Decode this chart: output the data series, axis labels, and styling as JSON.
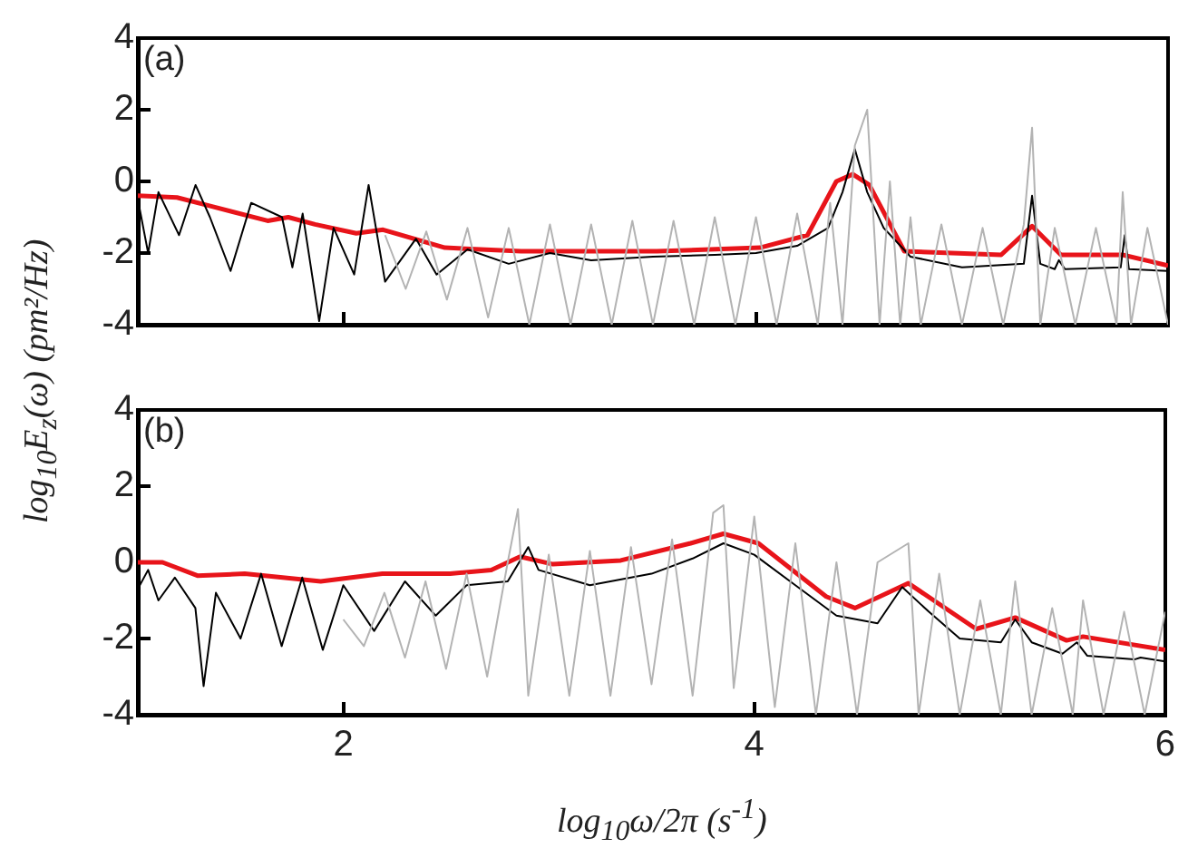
{
  "chart_data": [
    {
      "type": "line",
      "ylabel": "log$_{10}$E$_{z}$(ω) (pm²/Hz)",
      "annotations": [
        "(a)"
      ],
      "xlim": [
        1,
        6
      ],
      "xticks": [
        2,
        4,
        6
      ],
      "ylim": [
        -4,
        4
      ],
      "yticks": [
        -4,
        -2,
        0,
        2,
        4
      ],
      "tick_labels": "y",
      "grid": false,
      "legend": false,
      "marker": "none",
      "series": [
        {
          "color": "#b3b3b3",
          "x": [
            2.2,
            2.3,
            2.4,
            2.5,
            2.6,
            2.7,
            2.8,
            2.9,
            3.0,
            3.1,
            3.2,
            3.3,
            3.4,
            3.5,
            3.6,
            3.7,
            3.8,
            3.9,
            4.0,
            4.1,
            4.2,
            4.3,
            4.36,
            4.42,
            4.48,
            4.54,
            4.6,
            4.65,
            4.7,
            4.75,
            4.8,
            4.9,
            5.0,
            5.1,
            5.2,
            5.3,
            5.34,
            5.38,
            5.45,
            5.55,
            5.65,
            5.75,
            5.78,
            5.82,
            5.9,
            6.0
          ],
          "values": [
            -1.5,
            -3.0,
            -1.4,
            -3.3,
            -1.3,
            -3.8,
            -1.3,
            -4,
            -1.2,
            -4,
            -1.2,
            -4,
            -1.1,
            -4,
            -1.1,
            -4,
            -1.0,
            -4,
            -1.0,
            -4,
            -0.9,
            -4,
            -0.6,
            -4,
            1.0,
            2.0,
            -4,
            0.0,
            -4,
            -1.0,
            -4,
            -1.2,
            -4,
            -1.3,
            -4,
            -1.2,
            1.5,
            -4,
            -1.3,
            -4,
            -1.3,
            -4,
            -0.3,
            -4,
            -1.3,
            -4
          ]
        },
        {
          "color": "#000000",
          "x": [
            1.0,
            1.05,
            1.1,
            1.2,
            1.28,
            1.35,
            1.45,
            1.55,
            1.7,
            1.75,
            1.8,
            1.88,
            1.95,
            2.05,
            2.12,
            2.2,
            2.35,
            2.45,
            2.6,
            2.8,
            3.0,
            3.2,
            3.5,
            3.8,
            4.0,
            4.2,
            4.35,
            4.42,
            4.48,
            4.54,
            4.62,
            4.75,
            5.0,
            5.3,
            5.34,
            5.38,
            5.45,
            5.47,
            5.5,
            5.77,
            5.79,
            5.81,
            6.0
          ],
          "values": [
            -0.5,
            -2.0,
            -0.3,
            -1.5,
            -0.1,
            -1.0,
            -2.5,
            -0.6,
            -1.0,
            -2.4,
            -0.9,
            -3.9,
            -1.3,
            -2.6,
            -0.1,
            -2.8,
            -1.6,
            -2.6,
            -1.9,
            -2.3,
            -2.0,
            -2.2,
            -2.1,
            -2.05,
            -2.0,
            -1.8,
            -1.3,
            -0.3,
            0.9,
            -0.3,
            -1.3,
            -2.1,
            -2.4,
            -2.3,
            -0.4,
            -2.3,
            -2.45,
            -2.2,
            -2.45,
            -2.4,
            -1.5,
            -2.45,
            -2.5
          ]
        },
        {
          "color": "#e8141a",
          "x": [
            1.0,
            1.19,
            1.36,
            1.63,
            1.73,
            1.86,
            2.06,
            2.19,
            2.49,
            2.86,
            3.52,
            4.02,
            4.25,
            4.39,
            4.47,
            4.55,
            4.72,
            5.19,
            5.34,
            5.48,
            5.78,
            6.0
          ],
          "values": [
            -0.4,
            -0.45,
            -0.7,
            -1.1,
            -1.0,
            -1.2,
            -1.45,
            -1.35,
            -1.85,
            -1.95,
            -1.95,
            -1.85,
            -1.5,
            0.0,
            0.2,
            -0.1,
            -1.95,
            -2.05,
            -1.25,
            -2.05,
            -2.05,
            -2.35
          ]
        }
      ]
    },
    {
      "type": "line",
      "xlabel": "log$_{10}$ω/2π (s$^{-1}$)",
      "annotations": [
        "(b)"
      ],
      "xlim": [
        1,
        6
      ],
      "xticks": [
        2,
        4,
        6
      ],
      "ylim": [
        -4,
        4
      ],
      "yticks": [
        -4,
        -2,
        0,
        2,
        4
      ],
      "grid": false,
      "legend": false,
      "marker": "none",
      "series": [
        {
          "color": "#b3b3b3",
          "x": [
            2.0,
            2.1,
            2.2,
            2.3,
            2.4,
            2.5,
            2.6,
            2.7,
            2.8,
            2.85,
            2.9,
            3.0,
            3.1,
            3.2,
            3.3,
            3.4,
            3.5,
            3.6,
            3.7,
            3.8,
            3.85,
            3.9,
            4.0,
            4.1,
            4.2,
            4.3,
            4.4,
            4.5,
            4.6,
            4.75,
            4.8,
            4.9,
            5.0,
            5.1,
            5.2,
            5.27,
            5.35,
            5.45,
            5.55,
            5.6,
            5.7,
            5.8,
            5.9,
            6.0
          ],
          "values": [
            -1.5,
            -2.2,
            -0.8,
            -2.5,
            -0.5,
            -2.8,
            -0.3,
            -3.0,
            0.0,
            1.4,
            -3.5,
            0.2,
            -3.5,
            0.3,
            -3.5,
            0.4,
            -3.2,
            0.6,
            -3.5,
            1.3,
            1.5,
            -3.3,
            1.2,
            -3.8,
            0.5,
            -4,
            0.0,
            -4,
            0.0,
            0.5,
            -4,
            -0.3,
            -4,
            -1.0,
            -4,
            -0.5,
            -4,
            -1.2,
            -4,
            -1.0,
            -4,
            -1.3,
            -4,
            -1.3
          ]
        },
        {
          "color": "#000000",
          "x": [
            1.0,
            1.05,
            1.1,
            1.18,
            1.28,
            1.32,
            1.38,
            1.5,
            1.6,
            1.7,
            1.8,
            1.9,
            2.0,
            2.15,
            2.3,
            2.45,
            2.6,
            2.8,
            2.9,
            2.95,
            3.2,
            3.5,
            3.7,
            3.85,
            4.0,
            4.2,
            4.4,
            4.6,
            4.72,
            4.85,
            5.0,
            5.2,
            5.27,
            5.35,
            5.5,
            5.57,
            5.62,
            5.85,
            5.88,
            6.0
          ],
          "values": [
            -0.7,
            -0.2,
            -1.0,
            -0.4,
            -1.2,
            -3.25,
            -0.8,
            -2.0,
            -0.3,
            -2.2,
            -0.4,
            -2.3,
            -0.6,
            -1.8,
            -0.5,
            -1.4,
            -0.6,
            -0.5,
            0.4,
            -0.2,
            -0.6,
            -0.3,
            0.1,
            0.5,
            0.2,
            -0.6,
            -1.4,
            -1.6,
            -0.65,
            -1.3,
            -2.0,
            -2.1,
            -1.5,
            -2.1,
            -2.4,
            -2.1,
            -2.45,
            -2.55,
            -2.5,
            -2.6
          ]
        },
        {
          "color": "#e8141a",
          "x": [
            1.0,
            1.12,
            1.29,
            1.52,
            1.89,
            2.19,
            2.52,
            2.72,
            2.86,
            3.02,
            3.35,
            3.69,
            3.85,
            4.02,
            4.35,
            4.49,
            4.75,
            5.08,
            5.27,
            5.52,
            5.6,
            6.0
          ],
          "values": [
            0.0,
            0.0,
            -0.35,
            -0.3,
            -0.5,
            -0.3,
            -0.3,
            -0.2,
            0.15,
            -0.05,
            0.05,
            0.5,
            0.75,
            0.5,
            -0.9,
            -1.2,
            -0.55,
            -1.75,
            -1.45,
            -2.05,
            -1.95,
            -2.3
          ]
        }
      ]
    }
  ]
}
